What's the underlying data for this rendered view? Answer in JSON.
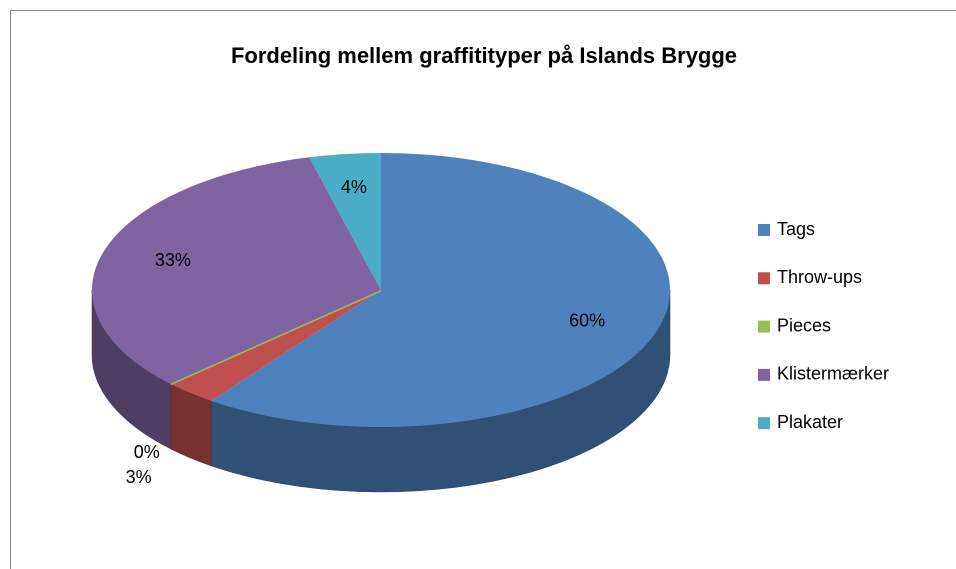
{
  "chart_data": {
    "type": "pie",
    "title": "Fordeling mellem graffitityper på Islands Brygge",
    "categories": [
      "Tags",
      "Throw-ups",
      "Pieces",
      "Klistermærker",
      "Plakater"
    ],
    "values": [
      60,
      3,
      0,
      33,
      4
    ],
    "value_labels": [
      "60%",
      "3%",
      "0%",
      "33%",
      "4%"
    ],
    "colors": [
      "#4f81bd",
      "#c0504d",
      "#9bbb59",
      "#8064a2",
      "#4bacc6"
    ],
    "legend": "right"
  }
}
